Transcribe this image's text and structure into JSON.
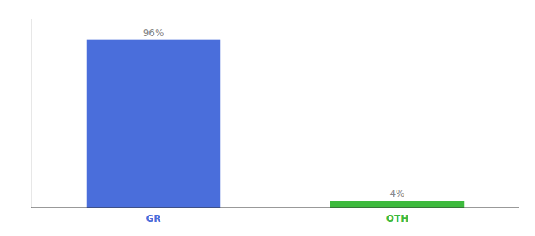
{
  "chart_data": {
    "type": "bar",
    "categories": [
      "GR",
      "OTH"
    ],
    "values": [
      96,
      4
    ],
    "value_labels": [
      "96%",
      "4%"
    ],
    "colors": [
      "#4a6edb",
      "#3dba3d"
    ],
    "ylim": [
      0,
      108
    ],
    "data_labels": true,
    "tick_labels": "x",
    "grid": false
  }
}
